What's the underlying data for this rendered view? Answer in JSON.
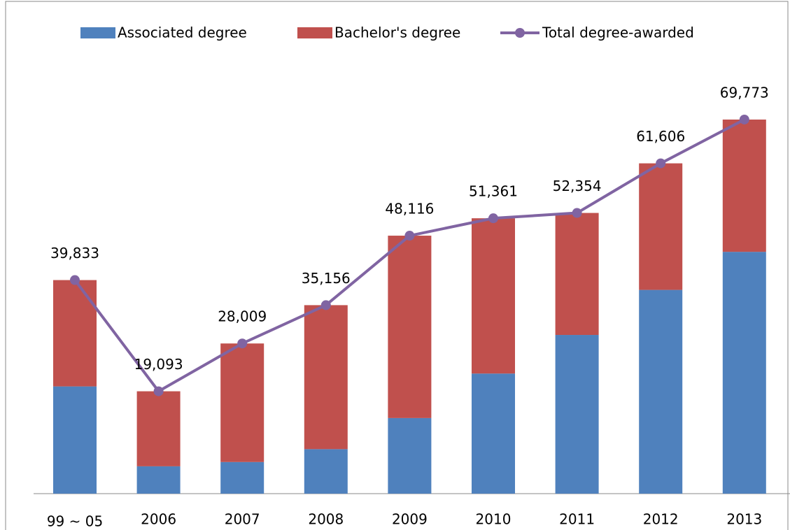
{
  "chart_data": {
    "type": "bar",
    "stacked": true,
    "categories": [
      "99 ~ 05",
      "2006",
      "2007",
      "2008",
      "2009",
      "2010",
      "2011",
      "2012",
      "2013"
    ],
    "series": [
      {
        "name": "Associated degree",
        "color": "#4f81bd",
        "type": "bar",
        "values": [
          20000,
          5100,
          5900,
          8300,
          14100,
          22400,
          29600,
          38000,
          45100
        ]
      },
      {
        "name": "Bachelor's degree",
        "color": "#c0504d",
        "type": "bar",
        "values": [
          19833,
          13993,
          22109,
          26856,
          34016,
          28961,
          22754,
          23606,
          24673
        ]
      },
      {
        "name": "Total degree-awarded",
        "color": "#8064a2",
        "type": "line",
        "values": [
          39833,
          19093,
          28009,
          35156,
          48116,
          51361,
          52354,
          61606,
          69773
        ],
        "value_labels": [
          "39,833",
          "19,093",
          "28,009",
          "35,156",
          "48,116",
          "51,361",
          "52,354",
          "61,606",
          "69,773"
        ]
      }
    ],
    "ylim": [
      0,
      80000
    ],
    "legend": "top"
  }
}
